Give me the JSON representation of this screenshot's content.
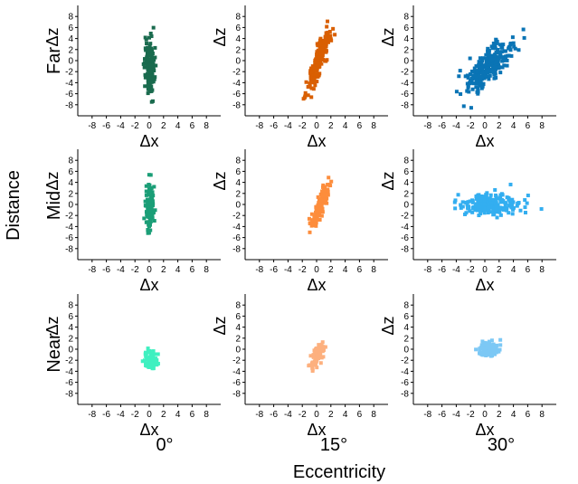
{
  "figure": {
    "y_label": "Distance",
    "x_label": "Eccentricity",
    "rows": [
      "Far",
      "Mid",
      "Near"
    ],
    "columns": [
      "0°",
      "15°",
      "30°"
    ]
  },
  "chart_data": [
    {
      "type": "scatter",
      "row": "Far",
      "column": "0°",
      "color": "#1a6b4e",
      "xlabel": "Δx",
      "ylabel": "Δz",
      "xlim": [
        -10,
        10
      ],
      "ylim": [
        -10,
        10
      ],
      "xticks": [
        "-8",
        "-6",
        "-4",
        "-2",
        "0",
        "2",
        "4",
        "6",
        "8"
      ],
      "yticks": [
        "-8",
        "-6",
        "-4",
        "-2",
        "0",
        "2",
        "4",
        "6",
        "8"
      ],
      "points_summary": {
        "x_center": 0.0,
        "x_spread": 0.35,
        "z_center": -1.0,
        "z_spread": 2.6,
        "n": 150
      }
    },
    {
      "type": "scatter",
      "row": "Far",
      "column": "15°",
      "color": "#d95f02",
      "xlabel": "Δx",
      "ylabel": "Δz",
      "xlim": [
        -10,
        10
      ],
      "ylim": [
        -10,
        10
      ],
      "xticks": [
        "-8",
        "-6",
        "-4",
        "-2",
        "0",
        "2",
        "4",
        "6",
        "8"
      ],
      "yticks": [
        "-8",
        "-6",
        "-4",
        "-2",
        "0",
        "2",
        "4",
        "6",
        "8"
      ],
      "points_summary": {
        "x_center": 0.2,
        "x_spread": 0.8,
        "z_center": -0.5,
        "z_spread": 3.0,
        "correlation": 0.9,
        "n": 200
      }
    },
    {
      "type": "scatter",
      "row": "Far",
      "column": "30°",
      "color": "#0a74b5",
      "xlabel": "Δx",
      "ylabel": "Δz",
      "xlim": [
        -10,
        10
      ],
      "ylim": [
        -10,
        10
      ],
      "xticks": [
        "-8",
        "-6",
        "-4",
        "-2",
        "0",
        "2",
        "4",
        "6",
        "8"
      ],
      "yticks": [
        "-8",
        "-6",
        "-4",
        "-2",
        "0",
        "2",
        "4",
        "6",
        "8"
      ],
      "points_summary": {
        "x_center": 0.5,
        "x_spread": 1.6,
        "z_center": -1.0,
        "z_spread": 2.2,
        "correlation": 0.75,
        "n": 260
      }
    },
    {
      "type": "scatter",
      "row": "Mid",
      "column": "0°",
      "color": "#1b9e77",
      "xlabel": "Δx",
      "ylabel": "Δz",
      "xlim": [
        -10,
        10
      ],
      "ylim": [
        -10,
        10
      ],
      "xticks": [
        "-8",
        "-6",
        "-4",
        "-2",
        "0",
        "2",
        "4",
        "6",
        "8"
      ],
      "yticks": [
        "-8",
        "-6",
        "-4",
        "-2",
        "0",
        "2",
        "4",
        "6",
        "8"
      ],
      "points_summary": {
        "x_center": 0.1,
        "x_spread": 0.3,
        "z_center": -0.5,
        "z_spread": 2.0,
        "n": 120
      }
    },
    {
      "type": "scatter",
      "row": "Mid",
      "column": "15°",
      "color": "#fd8d3c",
      "xlabel": "Δx",
      "ylabel": "Δz",
      "xlim": [
        -10,
        10
      ],
      "ylim": [
        -10,
        10
      ],
      "xticks": [
        "-8",
        "-6",
        "-4",
        "-2",
        "0",
        "2",
        "4",
        "6",
        "8"
      ],
      "yticks": [
        "-8",
        "-6",
        "-4",
        "-2",
        "0",
        "2",
        "4",
        "6",
        "8"
      ],
      "points_summary": {
        "x_center": 0.4,
        "x_spread": 0.6,
        "z_center": -0.5,
        "z_spread": 1.8,
        "correlation": 0.8,
        "n": 150
      }
    },
    {
      "type": "scatter",
      "row": "Mid",
      "column": "30°",
      "color": "#33aef0",
      "xlabel": "Δx",
      "ylabel": "Δz",
      "xlim": [
        -10,
        10
      ],
      "ylim": [
        -10,
        10
      ],
      "xticks": [
        "-8",
        "-6",
        "-4",
        "-2",
        "0",
        "2",
        "4",
        "6",
        "8"
      ],
      "yticks": [
        "-8",
        "-6",
        "-4",
        "-2",
        "0",
        "2",
        "4",
        "6",
        "8"
      ],
      "points_summary": {
        "x_center": 0.8,
        "x_spread": 2.2,
        "z_center": 0.0,
        "z_spread": 0.9,
        "n": 230
      }
    },
    {
      "type": "scatter",
      "row": "Near",
      "column": "0°",
      "color": "#3ff0c0",
      "xlabel": "Δx",
      "ylabel": "Δz",
      "xlim": [
        -10,
        10
      ],
      "ylim": [
        -10,
        10
      ],
      "xticks": [
        "-8",
        "-6",
        "-4",
        "-2",
        "0",
        "2",
        "4",
        "6",
        "8"
      ],
      "yticks": [
        "-8",
        "-6",
        "-4",
        "-2",
        "0",
        "2",
        "4",
        "6",
        "8"
      ],
      "points_summary": {
        "x_center": 0.2,
        "x_spread": 0.45,
        "z_center": -2.0,
        "z_spread": 0.9,
        "n": 90
      }
    },
    {
      "type": "scatter",
      "row": "Near",
      "column": "15°",
      "color": "#fdb07e",
      "xlabel": "Δx",
      "ylabel": "Δz",
      "xlim": [
        -10,
        10
      ],
      "ylim": [
        -10,
        10
      ],
      "xticks": [
        "-8",
        "-6",
        "-4",
        "-2",
        "0",
        "2",
        "4",
        "6",
        "8"
      ],
      "yticks": [
        "-8",
        "-6",
        "-4",
        "-2",
        "0",
        "2",
        "4",
        "6",
        "8"
      ],
      "points_summary": {
        "x_center": 0.1,
        "x_spread": 0.45,
        "z_center": -1.2,
        "z_spread": 1.0,
        "correlation": 0.6,
        "n": 90
      }
    },
    {
      "type": "scatter",
      "row": "Near",
      "column": "30°",
      "color": "#7cc8f5",
      "xlabel": "Δx",
      "ylabel": "Δz",
      "xlim": [
        -10,
        10
      ],
      "ylim": [
        -10,
        10
      ],
      "xticks": [
        "-8",
        "-6",
        "-4",
        "-2",
        "0",
        "2",
        "4",
        "6",
        "8"
      ],
      "yticks": [
        "-8",
        "-6",
        "-4",
        "-2",
        "0",
        "2",
        "4",
        "6",
        "8"
      ],
      "points_summary": {
        "x_center": 0.5,
        "x_spread": 0.7,
        "z_center": 0.0,
        "z_spread": 0.7,
        "n": 110
      }
    }
  ]
}
